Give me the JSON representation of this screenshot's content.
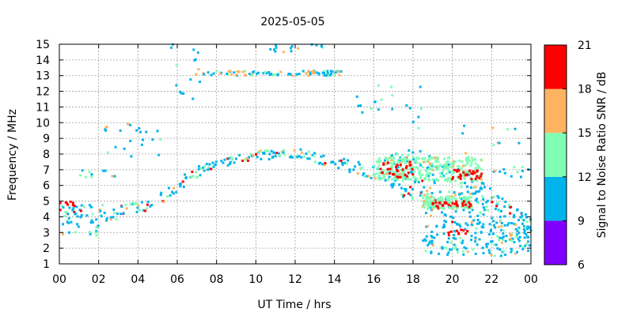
{
  "chart_data": {
    "type": "heatmap",
    "title": "2025-05-05",
    "xlabel": "UT Time / hrs",
    "ylabel": "Frequency / MHz",
    "xlim": [
      0,
      24
    ],
    "ylim": [
      1,
      15
    ],
    "x_ticks": [
      "00",
      "02",
      "04",
      "06",
      "08",
      "10",
      "12",
      "14",
      "16",
      "18",
      "20",
      "22",
      "00"
    ],
    "y_ticks": [
      "1",
      "2",
      "3",
      "4",
      "5",
      "6",
      "7",
      "8",
      "9",
      "10",
      "11",
      "12",
      "13",
      "14",
      "15"
    ],
    "grid": true,
    "colorbar": {
      "label": "Signal to Noise Ratio SNR / dB",
      "ticks": [
        "6",
        "9",
        "12",
        "15",
        "18",
        "21"
      ],
      "min": 6,
      "max": 21,
      "bands": [
        {
          "from": 6,
          "to": 9,
          "color": "#8000ff"
        },
        {
          "from": 9,
          "to": 12,
          "color": "#00b4eb"
        },
        {
          "from": 12,
          "to": 15,
          "color": "#80ffb4"
        },
        {
          "from": 15,
          "to": 18,
          "color": "#ffb360"
        },
        {
          "from": 18,
          "to": 21,
          "color": "#ff0000"
        }
      ]
    },
    "trend": [
      {
        "t": 0.0,
        "f": 4.3,
        "spread": 0.5
      },
      {
        "t": 1.0,
        "f": 4.4,
        "spread": 0.4
      },
      {
        "t": 2.0,
        "f": 4.3,
        "spread": 0.5
      },
      {
        "t": 3.0,
        "f": 4.2,
        "spread": 0.5
      },
      {
        "t": 4.0,
        "f": 4.6,
        "spread": 0.4
      },
      {
        "t": 5.0,
        "f": 5.0,
        "spread": 0.4
      },
      {
        "t": 6.0,
        "f": 6.0,
        "spread": 0.4
      },
      {
        "t": 7.0,
        "f": 6.8,
        "spread": 0.4
      },
      {
        "t": 8.0,
        "f": 7.3,
        "spread": 0.3
      },
      {
        "t": 9.0,
        "f": 7.6,
        "spread": 0.3
      },
      {
        "t": 10.0,
        "f": 7.9,
        "spread": 0.3
      },
      {
        "t": 11.0,
        "f": 8.0,
        "spread": 0.3
      },
      {
        "t": 12.0,
        "f": 8.1,
        "spread": 0.3
      },
      {
        "t": 13.0,
        "f": 7.8,
        "spread": 0.3
      },
      {
        "t": 14.0,
        "f": 7.4,
        "spread": 0.4
      },
      {
        "t": 15.0,
        "f": 7.2,
        "spread": 0.4
      },
      {
        "t": 16.0,
        "f": 6.8,
        "spread": 0.5
      },
      {
        "t": 17.0,
        "f": 7.0,
        "spread": 1.2
      },
      {
        "t": 18.0,
        "f": 6.5,
        "spread": 1.8
      },
      {
        "t": 19.0,
        "f": 6.0,
        "spread": 2.0
      },
      {
        "t": 20.0,
        "f": 5.5,
        "spread": 2.0
      },
      {
        "t": 21.0,
        "f": 5.0,
        "spread": 1.6
      },
      {
        "t": 22.0,
        "f": 4.3,
        "spread": 1.5
      },
      {
        "t": 23.0,
        "f": 3.5,
        "spread": 1.2
      },
      {
        "t": 24.0,
        "f": 3.0,
        "spread": 1.0
      }
    ],
    "clusters": [
      {
        "t0": 7.2,
        "t1": 14.5,
        "f0": 13.0,
        "f1": 13.3,
        "n": 70,
        "snr": 10
      },
      {
        "t0": 8.5,
        "t1": 9.5,
        "f0": 13.0,
        "f1": 13.3,
        "n": 10,
        "snr": 17
      },
      {
        "t0": 12.5,
        "t1": 13.2,
        "f0": 13.0,
        "f1": 13.3,
        "n": 8,
        "snr": 17
      },
      {
        "t0": 16.0,
        "t1": 21.5,
        "f0": 6.3,
        "f1": 7.8,
        "n": 260,
        "snr": 14
      },
      {
        "t0": 16.3,
        "t1": 18.0,
        "f0": 6.5,
        "f1": 7.5,
        "n": 30,
        "snr": 19
      },
      {
        "t0": 18.5,
        "t1": 21.0,
        "f0": 4.5,
        "f1": 5.3,
        "n": 120,
        "snr": 14
      },
      {
        "t0": 19.0,
        "t1": 21.0,
        "f0": 4.6,
        "f1": 5.0,
        "n": 30,
        "snr": 19
      },
      {
        "t0": 20.0,
        "t1": 21.5,
        "f0": 6.4,
        "f1": 7.0,
        "n": 30,
        "snr": 18
      },
      {
        "t0": 18.5,
        "t1": 24.0,
        "f0": 1.5,
        "f1": 3.6,
        "n": 140,
        "snr": 10
      },
      {
        "t0": 19.8,
        "t1": 20.8,
        "f0": 2.8,
        "f1": 3.2,
        "n": 10,
        "snr": 19
      },
      {
        "t0": 0.0,
        "t1": 2.0,
        "f0": 2.8,
        "f1": 4.2,
        "n": 25,
        "snr": 10
      },
      {
        "t0": 0.0,
        "t1": 1.0,
        "f0": 4.6,
        "f1": 5.0,
        "n": 8,
        "snr": 19
      },
      {
        "t0": 1.0,
        "t1": 3.0,
        "f0": 6.5,
        "f1": 7.0,
        "n": 10,
        "snr": 10
      },
      {
        "t0": 2.2,
        "t1": 5.3,
        "f0": 7.8,
        "f1": 10.0,
        "n": 22,
        "snr": 10
      },
      {
        "t0": 5.5,
        "t1": 7.5,
        "f0": 11.5,
        "f1": 15.0,
        "n": 16,
        "snr": 10
      },
      {
        "t0": 10.0,
        "t1": 13.5,
        "f0": 14.5,
        "f1": 15.0,
        "n": 15,
        "snr": 10
      },
      {
        "t0": 15.0,
        "t1": 18.5,
        "f0": 9.5,
        "f1": 12.5,
        "n": 20,
        "snr": 10
      },
      {
        "t0": 20.5,
        "t1": 23.5,
        "f0": 8.0,
        "f1": 9.8,
        "n": 10,
        "snr": 10
      },
      {
        "t0": 22.0,
        "t1": 24.0,
        "f0": 6.5,
        "f1": 7.2,
        "n": 12,
        "snr": 10
      }
    ]
  }
}
